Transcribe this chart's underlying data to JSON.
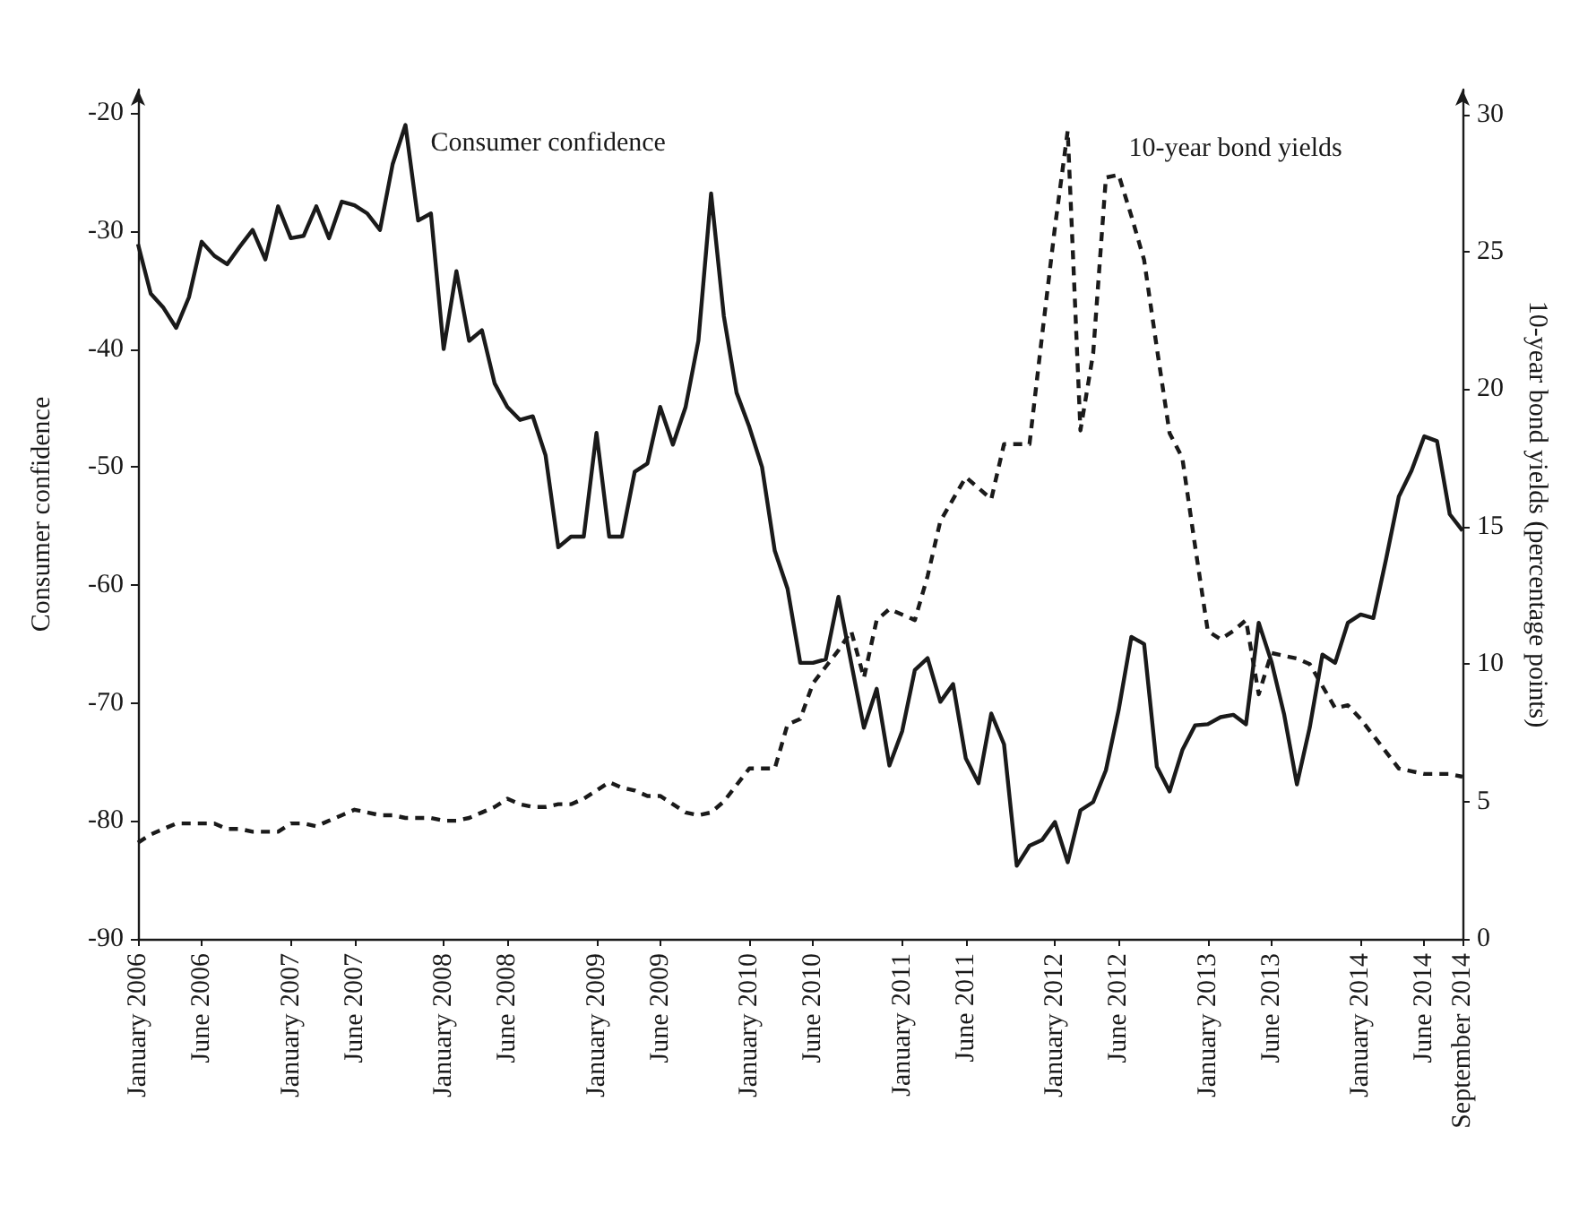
{
  "chart_data": {
    "type": "line",
    "categories": [
      "January 2006",
      null,
      null,
      null,
      null,
      "June 2006",
      null,
      null,
      null,
      null,
      null,
      null,
      "January 2007",
      null,
      null,
      null,
      null,
      "June 2007",
      null,
      null,
      null,
      null,
      null,
      null,
      "January 2008",
      null,
      null,
      null,
      null,
      "June 2008",
      null,
      null,
      null,
      null,
      null,
      null,
      "January 2009",
      null,
      null,
      null,
      null,
      "June 2009",
      null,
      null,
      null,
      null,
      null,
      null,
      "January 2010",
      null,
      null,
      null,
      null,
      "June 2010",
      null,
      null,
      null,
      null,
      null,
      null,
      "January 2011",
      null,
      null,
      null,
      null,
      "June 2011",
      null,
      null,
      null,
      null,
      null,
      null,
      "January 2012",
      null,
      null,
      null,
      null,
      "June 2012",
      null,
      null,
      null,
      null,
      null,
      null,
      "January 2013",
      null,
      null,
      null,
      null,
      "June 2013",
      null,
      null,
      null,
      null,
      null,
      null,
      "January 2014",
      null,
      null,
      null,
      null,
      "June 2014",
      null,
      null,
      "September 2014"
    ],
    "series": [
      {
        "name": "Consumer confidence",
        "color": "#1a1a1a",
        "line_style": "solid",
        "values": [
          -31.1,
          -35.3,
          -36.5,
          -38.2,
          -35.6,
          -30.9,
          -32.1,
          -32.8,
          -31.3,
          -29.9,
          -32.4,
          -27.9,
          -30.6,
          -30.4,
          -27.9,
          -30.6,
          -27.5,
          -27.8,
          -28.5,
          -29.9,
          -24.3,
          -21.0,
          -29.1,
          -28.5,
          -40.0,
          -33.4,
          -39.3,
          -38.4,
          -42.9,
          -44.9,
          -46.0,
          -45.7,
          -49.0,
          -56.8,
          -55.9,
          -55.9,
          -47.1,
          -55.9,
          -55.9,
          -50.4,
          -49.7,
          -44.9,
          -48.1,
          -44.9,
          -39.3,
          -26.8,
          -37.2,
          -43.7,
          -46.6,
          -50.0,
          -57.1,
          -60.3,
          -66.6,
          -66.6,
          -66.3,
          -61.0,
          -66.6,
          -72.1,
          -68.8,
          -75.3,
          -72.4,
          -67.2,
          -66.2,
          -69.9,
          -68.4,
          -74.7,
          -76.8,
          -70.9,
          -73.5,
          -83.8,
          -82.1,
          -81.6,
          -80.1,
          -83.5,
          -79.1,
          -78.4,
          -75.7,
          -70.6,
          -64.4,
          -65.0,
          -75.4,
          -77.5,
          -74.0,
          -71.9,
          -71.8,
          -71.2,
          -71.0,
          -71.8,
          -63.2,
          -66.5,
          -71.0,
          -76.9,
          -72.1,
          -65.9,
          -66.6,
          -63.2,
          -62.5,
          -62.8,
          -57.8,
          -52.5,
          -50.3,
          -47.4,
          -47.8,
          -54.0,
          -55.4
        ]
      },
      {
        "name": "10-year bond yields",
        "color": "#1a1a1a",
        "line_style": "dashed",
        "axis": "y2",
        "values": [
          3.5,
          3.8,
          4.0,
          4.2,
          4.2,
          4.2,
          4.2,
          4.0,
          4.0,
          3.9,
          3.9,
          3.9,
          4.2,
          4.2,
          4.1,
          4.3,
          4.5,
          4.7,
          4.6,
          4.5,
          4.5,
          4.4,
          4.4,
          4.4,
          4.3,
          4.3,
          4.4,
          4.6,
          4.8,
          5.1,
          4.9,
          4.8,
          4.8,
          4.9,
          4.9,
          5.1,
          5.4,
          5.7,
          5.5,
          5.4,
          5.2,
          5.2,
          4.9,
          4.6,
          4.5,
          4.6,
          5.0,
          5.6,
          6.2,
          6.2,
          6.2,
          7.8,
          8.0,
          9.3,
          9.9,
          10.5,
          11.2,
          9.5,
          11.6,
          12.0,
          11.8,
          11.6,
          13.2,
          15.2,
          16.0,
          16.8,
          16.4,
          16.0,
          18.0,
          18.0,
          18.0,
          22.0,
          25.9,
          29.4,
          18.5,
          21.3,
          27.7,
          27.8,
          26.3,
          24.7,
          21.5,
          18.4,
          17.5,
          14.3,
          11.2,
          10.9,
          11.2,
          11.6,
          8.9,
          10.4,
          10.3,
          10.2,
          10.0,
          9.2,
          8.4,
          8.5,
          8.0,
          7.4,
          6.8,
          6.2,
          6.1,
          6.0,
          6.0,
          6.0,
          5.9
        ]
      }
    ],
    "ylabel": "Consumer confidence",
    "y2label": "10-year bond yields (percentage points)",
    "ylim": [
      -90,
      -18
    ],
    "yticks": [
      -90,
      -80,
      -70,
      -60,
      -50,
      -40,
      -30,
      -20
    ],
    "y2lim": [
      0,
      30.9
    ],
    "y2ticks": [
      0,
      5,
      10,
      15,
      20,
      25,
      30
    ],
    "marker": "none",
    "grid": false,
    "legend": false
  }
}
